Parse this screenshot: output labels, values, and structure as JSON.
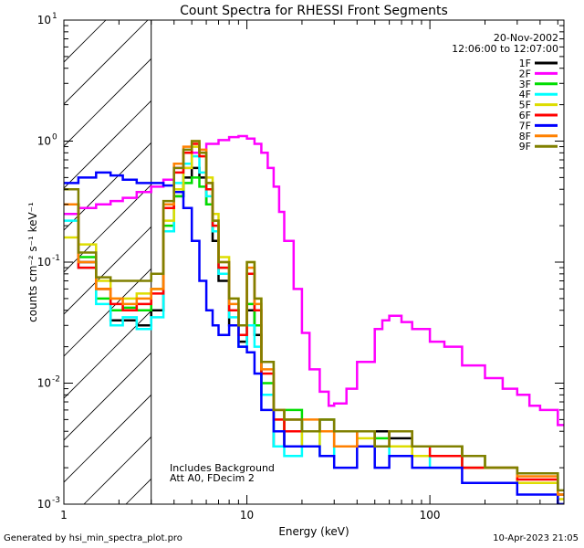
{
  "chart_data": {
    "type": "line",
    "title": "Count Spectra for RHESSI Front Segments",
    "xlabel": "Energy (keV)",
    "ylabel": "counts cm⁻² s⁻¹ keV⁻¹",
    "xscale": "log",
    "yscale": "log",
    "xlim": [
      1,
      540
    ],
    "ylim": [
      0.001,
      10
    ],
    "x_ticks": [
      {
        "value": 1,
        "label": "1"
      },
      {
        "value": 10,
        "label": "10"
      },
      {
        "value": 100,
        "label": "100"
      }
    ],
    "y_ticks": [
      {
        "value": 0.001,
        "base": "10",
        "exp": "-3"
      },
      {
        "value": 0.01,
        "base": "10",
        "exp": "-2"
      },
      {
        "value": 0.1,
        "base": "10",
        "exp": "-1"
      },
      {
        "value": 1,
        "base": "10",
        "exp": "0"
      },
      {
        "value": 10,
        "base": "10",
        "exp": "1"
      }
    ],
    "shaded_region": {
      "x_from": 1,
      "x_to": 3
    },
    "date_text": "20-Nov-2002",
    "time_text": "12:06:00 to 12:07:00",
    "annotations": [
      "Includes Background",
      "Att A0, FDecim 2"
    ],
    "series": [
      {
        "name": "1F",
        "color": "#000000",
        "x": [
          1,
          1.2,
          1.5,
          1.8,
          2.1,
          2.5,
          3,
          3.5,
          4,
          4.5,
          5,
          5.5,
          6,
          6.5,
          7,
          8,
          9,
          10,
          11,
          12,
          14,
          16,
          20,
          25,
          30,
          40,
          50,
          60,
          80,
          100,
          150,
          200,
          300,
          500
        ],
        "y": [
          0.3,
          0.1,
          0.06,
          0.033,
          0.033,
          0.03,
          0.04,
          0.18,
          0.35,
          0.5,
          0.6,
          0.5,
          0.3,
          0.15,
          0.07,
          0.03,
          0.022,
          0.04,
          0.025,
          0.008,
          0.003,
          0.005,
          0.004,
          0.005,
          0.004,
          0.003,
          0.004,
          0.0035,
          0.003,
          0.003,
          0.002,
          0.002,
          0.0015,
          0.001
        ]
      },
      {
        "name": "2F",
        "color": "#ff00ff",
        "x": [
          1,
          1.2,
          1.5,
          1.8,
          2.1,
          2.5,
          3,
          3.5,
          4,
          5,
          6,
          7,
          8,
          9,
          10,
          11,
          12,
          13,
          14,
          15,
          16,
          18,
          20,
          22,
          25,
          28,
          30,
          35,
          40,
          50,
          55,
          60,
          70,
          80,
          100,
          120,
          150,
          200,
          250,
          300,
          350,
          400,
          500,
          540
        ],
        "y": [
          0.25,
          0.28,
          0.3,
          0.32,
          0.34,
          0.38,
          0.42,
          0.48,
          0.6,
          0.8,
          0.95,
          1.02,
          1.08,
          1.1,
          1.05,
          0.95,
          0.8,
          0.6,
          0.42,
          0.26,
          0.15,
          0.06,
          0.026,
          0.013,
          0.0085,
          0.0065,
          0.0068,
          0.009,
          0.015,
          0.028,
          0.033,
          0.036,
          0.032,
          0.028,
          0.022,
          0.02,
          0.014,
          0.011,
          0.009,
          0.008,
          0.0065,
          0.006,
          0.0045,
          0.0045
        ]
      },
      {
        "name": "3F",
        "color": "#00dd00",
        "x": [
          1,
          1.2,
          1.5,
          1.8,
          2.1,
          2.5,
          3,
          3.5,
          4,
          4.5,
          5,
          5.5,
          6,
          6.5,
          7,
          8,
          9,
          10,
          11,
          12,
          14,
          16,
          20,
          25,
          30,
          40,
          50,
          60,
          80,
          100,
          150,
          200,
          300,
          500
        ],
        "y": [
          0.3,
          0.11,
          0.05,
          0.04,
          0.042,
          0.04,
          0.06,
          0.2,
          0.35,
          0.45,
          0.5,
          0.42,
          0.3,
          0.18,
          0.09,
          0.04,
          0.025,
          0.045,
          0.03,
          0.01,
          0.004,
          0.006,
          0.004,
          0.005,
          0.004,
          0.004,
          0.0035,
          0.004,
          0.003,
          0.003,
          0.0025,
          0.002,
          0.0018,
          0.0012
        ]
      },
      {
        "name": "4F",
        "color": "#00ffff",
        "x": [
          1,
          1.2,
          1.5,
          1.8,
          2.1,
          2.5,
          3,
          3.5,
          4,
          4.5,
          5,
          5.5,
          6,
          6.5,
          7,
          8,
          9,
          10,
          11,
          12,
          14,
          16,
          20,
          25,
          30,
          40,
          50,
          60,
          80,
          100,
          150,
          200,
          300,
          500
        ],
        "y": [
          0.22,
          0.09,
          0.045,
          0.03,
          0.035,
          0.028,
          0.035,
          0.18,
          0.45,
          0.65,
          0.75,
          0.55,
          0.35,
          0.18,
          0.08,
          0.035,
          0.02,
          0.03,
          0.02,
          0.008,
          0.003,
          0.0025,
          0.004,
          0.0025,
          0.003,
          0.003,
          0.003,
          0.0025,
          0.0025,
          0.002,
          0.0025,
          0.002,
          0.0015,
          0.0012
        ]
      },
      {
        "name": "5F",
        "color": "#dddd00",
        "x": [
          1,
          1.2,
          1.5,
          1.8,
          2.1,
          2.5,
          3,
          3.5,
          4,
          4.5,
          5,
          5.5,
          6,
          6.5,
          7,
          8,
          9,
          10,
          11,
          12,
          14,
          16,
          20,
          25,
          30,
          40,
          50,
          60,
          80,
          100,
          150,
          200,
          300,
          500
        ],
        "y": [
          0.16,
          0.14,
          0.07,
          0.05,
          0.05,
          0.055,
          0.06,
          0.22,
          0.4,
          0.6,
          0.9,
          0.8,
          0.5,
          0.25,
          0.11,
          0.05,
          0.03,
          0.1,
          0.05,
          0.015,
          0.005,
          0.004,
          0.003,
          0.004,
          0.003,
          0.0035,
          0.003,
          0.003,
          0.0025,
          0.0025,
          0.002,
          0.002,
          0.0015,
          0.0011
        ]
      },
      {
        "name": "6F",
        "color": "#ff0000",
        "x": [
          1,
          1.2,
          1.5,
          1.8,
          2.1,
          2.5,
          3,
          3.5,
          4,
          4.5,
          5,
          5.5,
          6,
          6.5,
          7,
          8,
          9,
          10,
          11,
          12,
          14,
          16,
          20,
          25,
          30,
          40,
          50,
          60,
          80,
          100,
          150,
          200,
          300,
          500
        ],
        "y": [
          0.3,
          0.09,
          0.06,
          0.045,
          0.04,
          0.045,
          0.055,
          0.28,
          0.55,
          0.8,
          0.95,
          0.75,
          0.4,
          0.2,
          0.09,
          0.04,
          0.025,
          0.08,
          0.04,
          0.012,
          0.005,
          0.004,
          0.004,
          0.004,
          0.003,
          0.004,
          0.003,
          0.004,
          0.003,
          0.0025,
          0.002,
          0.002,
          0.0016,
          0.0012
        ]
      },
      {
        "name": "7F",
        "color": "#0000ff",
        "x": [
          1,
          1.2,
          1.5,
          1.8,
          2.1,
          2.5,
          3,
          3.5,
          4,
          4.5,
          5,
          5.5,
          6,
          6.5,
          7,
          8,
          9,
          10,
          11,
          12,
          14,
          16,
          20,
          25,
          30,
          40,
          50,
          60,
          80,
          100,
          150,
          200,
          300,
          500
        ],
        "y": [
          0.45,
          0.5,
          0.55,
          0.52,
          0.48,
          0.45,
          0.45,
          0.43,
          0.38,
          0.28,
          0.15,
          0.07,
          0.04,
          0.03,
          0.025,
          0.03,
          0.02,
          0.018,
          0.012,
          0.006,
          0.004,
          0.003,
          0.003,
          0.0025,
          0.002,
          0.003,
          0.002,
          0.0025,
          0.002,
          0.002,
          0.0015,
          0.0015,
          0.0012,
          0.001
        ]
      },
      {
        "name": "8F",
        "color": "#ff8000",
        "x": [
          1,
          1.2,
          1.5,
          1.8,
          2.1,
          2.5,
          3,
          3.5,
          4,
          4.5,
          5,
          5.5,
          6,
          6.5,
          7,
          8,
          9,
          10,
          11,
          12,
          14,
          16,
          20,
          25,
          30,
          40,
          50,
          60,
          80,
          100,
          150,
          200,
          300,
          500
        ],
        "y": [
          0.3,
          0.1,
          0.06,
          0.05,
          0.045,
          0.05,
          0.06,
          0.3,
          0.65,
          0.9,
          1.0,
          0.85,
          0.45,
          0.22,
          0.1,
          0.045,
          0.03,
          0.09,
          0.045,
          0.013,
          0.006,
          0.005,
          0.005,
          0.004,
          0.003,
          0.004,
          0.003,
          0.004,
          0.003,
          0.003,
          0.0025,
          0.002,
          0.0017,
          0.0012
        ]
      },
      {
        "name": "9F",
        "color": "#808000",
        "x": [
          1,
          1.2,
          1.5,
          1.8,
          2.1,
          2.5,
          3,
          3.5,
          4,
          4.5,
          5,
          5.5,
          6,
          6.5,
          7,
          8,
          9,
          10,
          11,
          12,
          14,
          16,
          20,
          25,
          30,
          40,
          50,
          60,
          80,
          100,
          150,
          200,
          300,
          500
        ],
        "y": [
          0.4,
          0.12,
          0.075,
          0.07,
          0.07,
          0.07,
          0.08,
          0.32,
          0.6,
          0.85,
          1.0,
          0.8,
          0.45,
          0.22,
          0.1,
          0.05,
          0.03,
          0.1,
          0.05,
          0.015,
          0.006,
          0.005,
          0.004,
          0.005,
          0.004,
          0.004,
          0.003,
          0.004,
          0.003,
          0.003,
          0.0025,
          0.002,
          0.0018,
          0.0013
        ]
      }
    ]
  },
  "footer": {
    "left": "Generated by hsi_min_spectra_plot.pro",
    "right": "10-Apr-2023 21:05"
  }
}
